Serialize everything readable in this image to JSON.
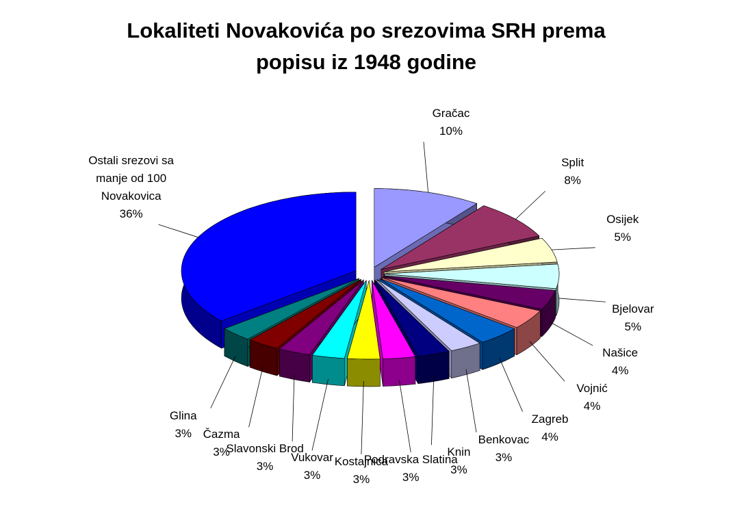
{
  "chart_data": {
    "type": "pie3d",
    "title": "Lokaliteti Novakovića po srezovima SRH prema popisu iz 1948 godine",
    "categories": [
      "Gračac",
      "Split",
      "Osijek",
      "Bjelovar",
      "Našice",
      "Vojnić",
      "Zagreb",
      "Benkovac",
      "Knin",
      "Podravska Slatina",
      "Kostajnica",
      "Vukovar",
      "Slavonski Brod",
      "Čazma",
      "Glina",
      "Ostali srezovi sa manje od 100 Novakovica"
    ],
    "values": [
      10,
      8,
      5,
      5,
      4,
      4,
      4,
      3,
      3,
      3,
      3,
      3,
      3,
      3,
      3,
      36
    ],
    "value_labels": [
      "10%",
      "8%",
      "5%",
      "5%",
      "4%",
      "4%",
      "4%",
      "3%",
      "3%",
      "3%",
      "3%",
      "3%",
      "3%",
      "3%",
      "3%",
      "36%"
    ],
    "colors": [
      "#9999ff",
      "#993366",
      "#ffffcc",
      "#ccffff",
      "#660066",
      "#ff8080",
      "#0066cc",
      "#ccccff",
      "#000080",
      "#ff00ff",
      "#ffff00",
      "#00ffff",
      "#800080",
      "#800000",
      "#008080",
      "#0000ff"
    ]
  }
}
